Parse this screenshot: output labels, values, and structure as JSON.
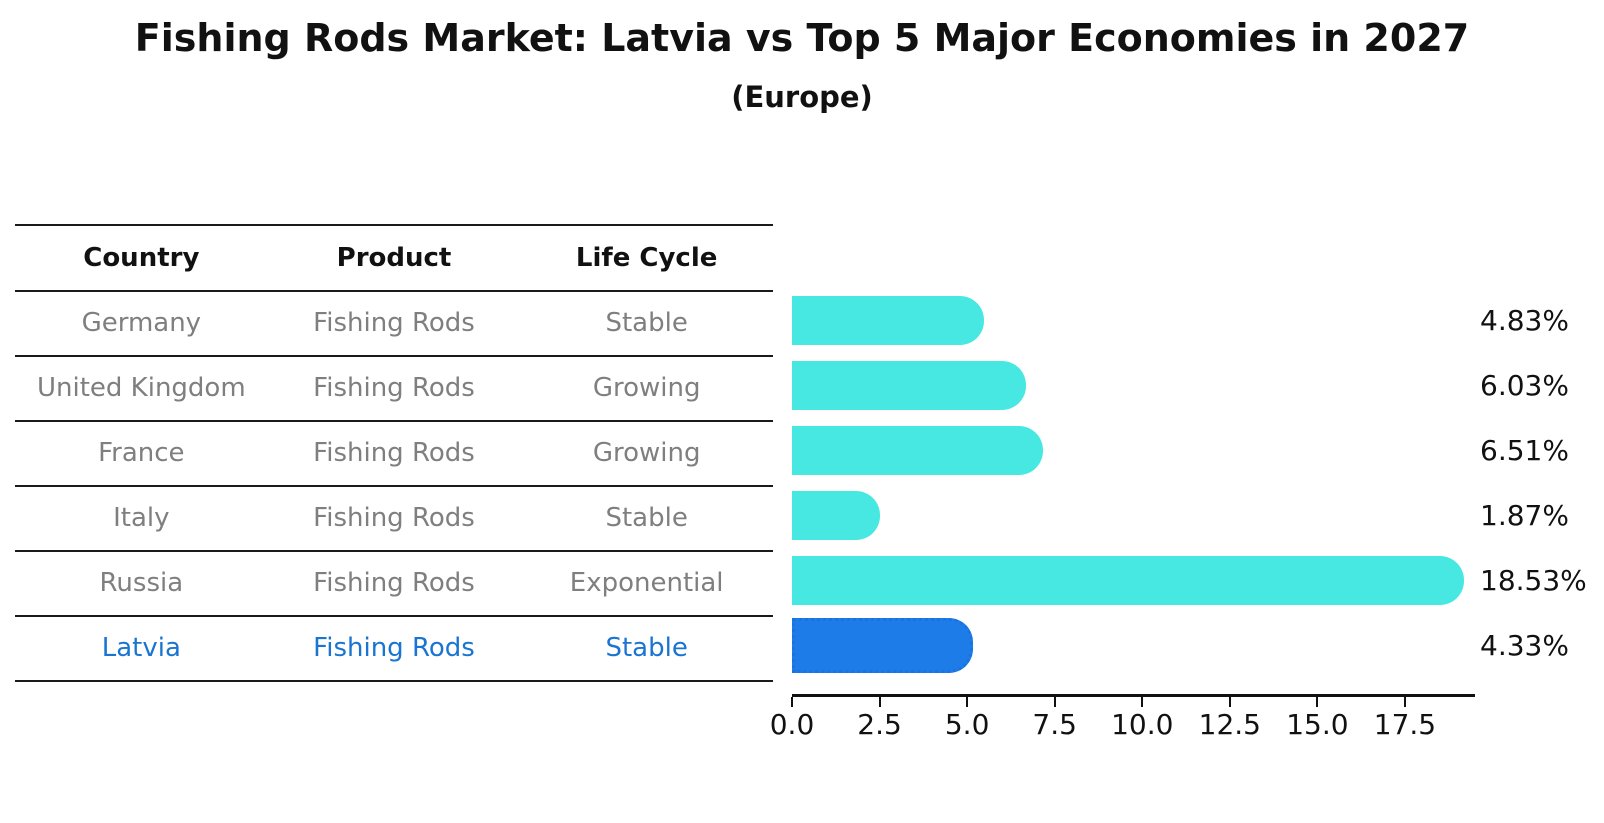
{
  "title": "Fishing Rods Market: Latvia vs Top 5 Major Economies in 2027",
  "subtitle": "(Europe)",
  "table": {
    "headers": [
      "Country",
      "Product",
      "Life Cycle"
    ],
    "rows": [
      {
        "country": "Germany",
        "product": "Fishing Rods",
        "life_cycle": "Stable",
        "value_label": "4.83%",
        "highlight": false
      },
      {
        "country": "United Kingdom",
        "product": "Fishing Rods",
        "life_cycle": "Growing",
        "value_label": "6.03%",
        "highlight": false
      },
      {
        "country": "France",
        "product": "Fishing Rods",
        "life_cycle": "Growing",
        "value_label": "6.51%",
        "highlight": false
      },
      {
        "country": "Italy",
        "product": "Fishing Rods",
        "life_cycle": "Stable",
        "value_label": "1.87%",
        "highlight": false
      },
      {
        "country": "Russia",
        "product": "Fishing Rods",
        "life_cycle": "Exponential",
        "value_label": "18.53%",
        "highlight": false
      },
      {
        "country": "Latvia",
        "product": "Fishing Rods",
        "life_cycle": "Stable",
        "value_label": "4.33%",
        "highlight": true
      }
    ]
  },
  "chart_data": {
    "type": "bar",
    "orientation": "horizontal",
    "title": "Fishing Rods Market: Latvia vs Top 5 Major Economies in 2027 (Europe)",
    "categories": [
      "Germany",
      "United Kingdom",
      "France",
      "Italy",
      "Russia",
      "Latvia"
    ],
    "values": [
      4.83,
      6.03,
      6.51,
      1.87,
      18.53,
      4.33
    ],
    "value_labels": [
      "4.83%",
      "6.03%",
      "6.51%",
      "1.87%",
      "18.53%",
      "4.33%"
    ],
    "xticks": [
      0.0,
      2.5,
      5.0,
      7.5,
      10.0,
      12.5,
      15.0,
      17.5
    ],
    "xtick_labels": [
      "0.0",
      "2.5",
      "5.0",
      "7.5",
      "10.0",
      "12.5",
      "15.0",
      "17.5"
    ],
    "xlim": [
      0,
      19.5
    ],
    "xlabel": "",
    "ylabel": "",
    "grid": false,
    "legend": false,
    "bar_color": "#47e8e2",
    "highlight_bar_color": "#1e7ce8",
    "highlight_index": 5
  },
  "colors": {
    "heading_text": "#111111",
    "muted_text": "#7f7f7f",
    "highlight_text": "#1a75d2",
    "line": "#1a1a1a"
  }
}
